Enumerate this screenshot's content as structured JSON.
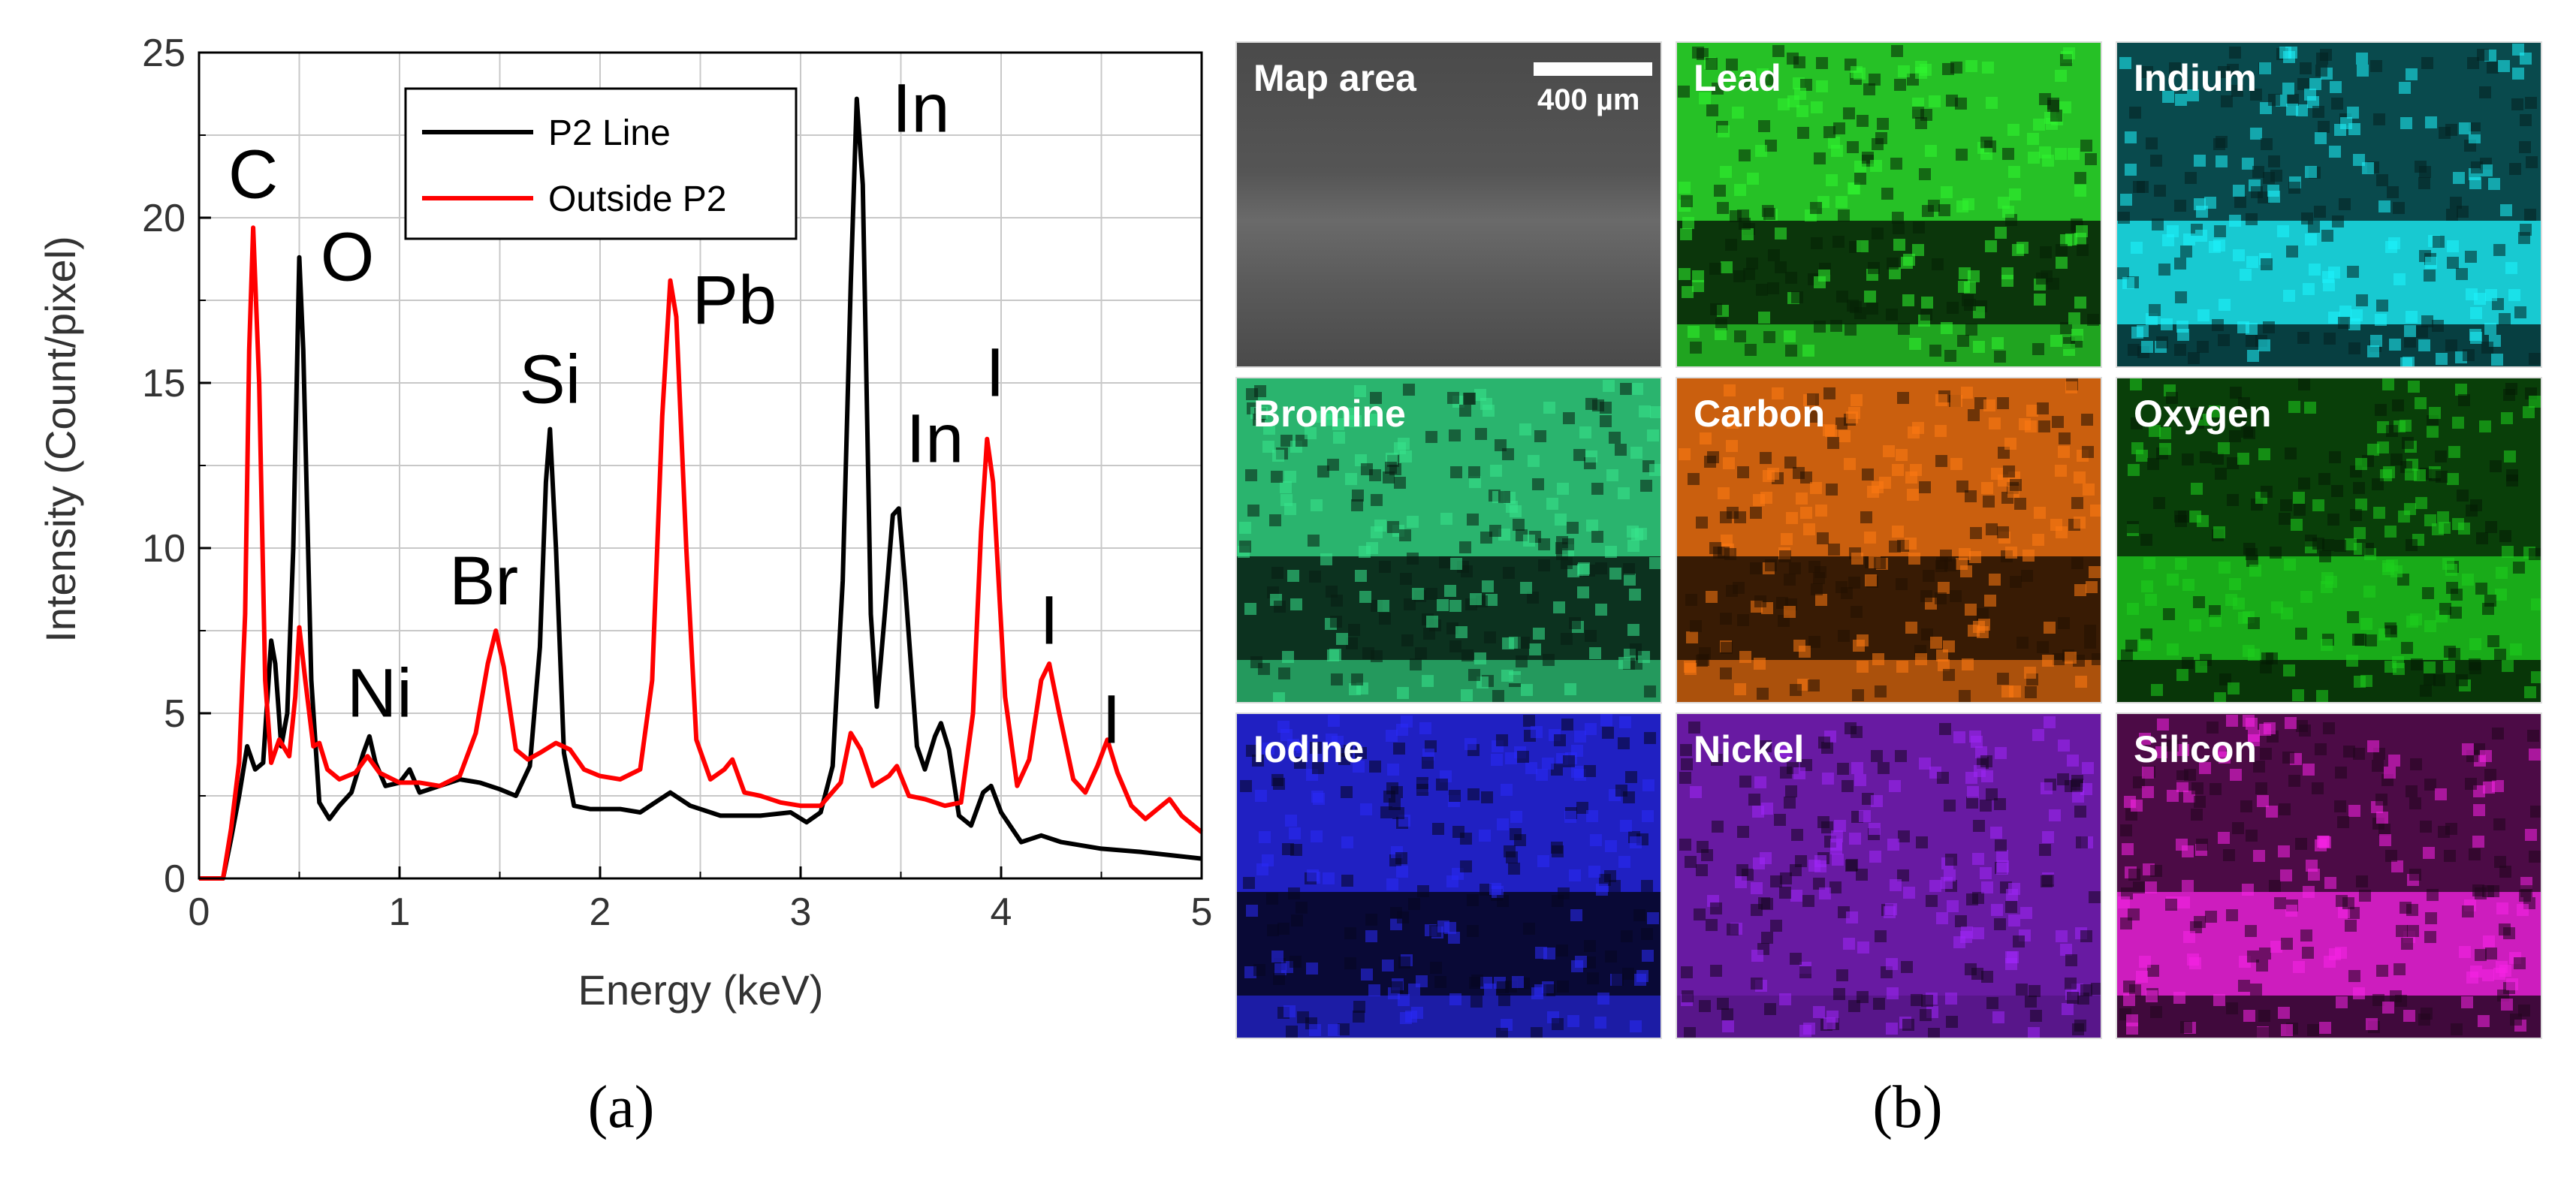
{
  "chart_data": {
    "type": "line",
    "xlabel": "Energy (keV)",
    "ylabel": "Intensity (Count/pixel)",
    "xlim": [
      0,
      5
    ],
    "ylim": [
      0,
      25
    ],
    "x_ticks": [
      "0",
      "1",
      "2",
      "3",
      "4",
      "5"
    ],
    "y_ticks": [
      "0",
      "5",
      "10",
      "15",
      "20",
      "25"
    ],
    "grid": true,
    "legend_position": "top-center",
    "series": [
      {
        "name": "P2 Line",
        "color": "#000000",
        "points": [
          [
            0,
            0
          ],
          [
            0.12,
            0
          ],
          [
            0.16,
            1.2
          ],
          [
            0.2,
            2.5
          ],
          [
            0.24,
            4
          ],
          [
            0.28,
            3.3
          ],
          [
            0.32,
            3.5
          ],
          [
            0.36,
            7.2
          ],
          [
            0.38,
            6.5
          ],
          [
            0.41,
            4
          ],
          [
            0.44,
            5
          ],
          [
            0.47,
            10
          ],
          [
            0.5,
            18.8
          ],
          [
            0.52,
            16
          ],
          [
            0.56,
            6
          ],
          [
            0.6,
            2.3
          ],
          [
            0.65,
            1.8
          ],
          [
            0.7,
            2.2
          ],
          [
            0.76,
            2.6
          ],
          [
            0.82,
            3.8
          ],
          [
            0.85,
            4.3
          ],
          [
            0.88,
            3.5
          ],
          [
            0.93,
            2.8
          ],
          [
            1.0,
            2.9
          ],
          [
            1.05,
            3.3
          ],
          [
            1.1,
            2.6
          ],
          [
            1.2,
            2.8
          ],
          [
            1.3,
            3.0
          ],
          [
            1.4,
            2.9
          ],
          [
            1.5,
            2.7
          ],
          [
            1.58,
            2.5
          ],
          [
            1.65,
            3.4
          ],
          [
            1.7,
            7
          ],
          [
            1.73,
            12
          ],
          [
            1.75,
            13.6
          ],
          [
            1.78,
            10
          ],
          [
            1.82,
            3.8
          ],
          [
            1.87,
            2.2
          ],
          [
            1.95,
            2.1
          ],
          [
            2.1,
            2.1
          ],
          [
            2.2,
            2.0
          ],
          [
            2.3,
            2.4
          ],
          [
            2.35,
            2.6
          ],
          [
            2.45,
            2.2
          ],
          [
            2.6,
            1.9
          ],
          [
            2.8,
            1.9
          ],
          [
            2.95,
            2.0
          ],
          [
            3.03,
            1.7
          ],
          [
            3.1,
            2.0
          ],
          [
            3.16,
            3.4
          ],
          [
            3.21,
            9
          ],
          [
            3.25,
            18
          ],
          [
            3.28,
            23.6
          ],
          [
            3.31,
            21
          ],
          [
            3.35,
            8
          ],
          [
            3.38,
            5.2
          ],
          [
            3.42,
            8
          ],
          [
            3.46,
            11
          ],
          [
            3.49,
            11.2
          ],
          [
            3.52,
            9
          ],
          [
            3.58,
            4
          ],
          [
            3.62,
            3.3
          ],
          [
            3.67,
            4.3
          ],
          [
            3.7,
            4.7
          ],
          [
            3.74,
            3.9
          ],
          [
            3.79,
            1.9
          ],
          [
            3.85,
            1.6
          ],
          [
            3.91,
            2.6
          ],
          [
            3.95,
            2.8
          ],
          [
            4.0,
            2.0
          ],
          [
            4.1,
            1.1
          ],
          [
            4.2,
            1.3
          ],
          [
            4.3,
            1.1
          ],
          [
            4.5,
            0.9
          ],
          [
            4.7,
            0.8
          ],
          [
            5.0,
            0.6
          ]
        ]
      },
      {
        "name": "Outside P2",
        "color": "#ff0000",
        "points": [
          [
            0,
            0
          ],
          [
            0.12,
            0
          ],
          [
            0.16,
            1.5
          ],
          [
            0.2,
            3.5
          ],
          [
            0.23,
            8
          ],
          [
            0.25,
            16
          ],
          [
            0.27,
            19.7
          ],
          [
            0.3,
            15
          ],
          [
            0.33,
            6
          ],
          [
            0.36,
            3.5
          ],
          [
            0.4,
            4.2
          ],
          [
            0.45,
            3.7
          ],
          [
            0.48,
            5.5
          ],
          [
            0.5,
            7.6
          ],
          [
            0.53,
            6
          ],
          [
            0.57,
            4
          ],
          [
            0.6,
            4.1
          ],
          [
            0.64,
            3.3
          ],
          [
            0.7,
            3
          ],
          [
            0.78,
            3.2
          ],
          [
            0.84,
            3.7
          ],
          [
            0.9,
            3.2
          ],
          [
            1.0,
            2.9
          ],
          [
            1.1,
            2.9
          ],
          [
            1.2,
            2.8
          ],
          [
            1.3,
            3.1
          ],
          [
            1.38,
            4.4
          ],
          [
            1.44,
            6.5
          ],
          [
            1.48,
            7.5
          ],
          [
            1.52,
            6.4
          ],
          [
            1.58,
            3.9
          ],
          [
            1.64,
            3.6
          ],
          [
            1.7,
            3.8
          ],
          [
            1.78,
            4.1
          ],
          [
            1.85,
            3.9
          ],
          [
            1.92,
            3.3
          ],
          [
            2.0,
            3.1
          ],
          [
            2.1,
            3.0
          ],
          [
            2.2,
            3.3
          ],
          [
            2.26,
            6
          ],
          [
            2.31,
            14
          ],
          [
            2.35,
            18.1
          ],
          [
            2.38,
            17
          ],
          [
            2.43,
            10
          ],
          [
            2.48,
            4.2
          ],
          [
            2.55,
            3.0
          ],
          [
            2.62,
            3.3
          ],
          [
            2.66,
            3.6
          ],
          [
            2.72,
            2.6
          ],
          [
            2.8,
            2.5
          ],
          [
            2.9,
            2.3
          ],
          [
            3.0,
            2.2
          ],
          [
            3.1,
            2.2
          ],
          [
            3.2,
            2.9
          ],
          [
            3.25,
            4.4
          ],
          [
            3.3,
            3.9
          ],
          [
            3.36,
            2.8
          ],
          [
            3.44,
            3.1
          ],
          [
            3.48,
            3.4
          ],
          [
            3.54,
            2.5
          ],
          [
            3.62,
            2.4
          ],
          [
            3.72,
            2.2
          ],
          [
            3.8,
            2.3
          ],
          [
            3.86,
            5
          ],
          [
            3.9,
            10.5
          ],
          [
            3.93,
            13.3
          ],
          [
            3.96,
            12
          ],
          [
            4.02,
            5.5
          ],
          [
            4.08,
            2.8
          ],
          [
            4.14,
            3.6
          ],
          [
            4.2,
            6
          ],
          [
            4.24,
            6.5
          ],
          [
            4.29,
            5
          ],
          [
            4.36,
            3.0
          ],
          [
            4.42,
            2.6
          ],
          [
            4.48,
            3.4
          ],
          [
            4.53,
            4.2
          ],
          [
            4.58,
            3.2
          ],
          [
            4.65,
            2.2
          ],
          [
            4.72,
            1.8
          ],
          [
            4.8,
            2.2
          ],
          [
            4.84,
            2.4
          ],
          [
            4.9,
            1.9
          ],
          [
            5.0,
            1.4
          ]
        ]
      }
    ],
    "annotations": [
      {
        "text": "C",
        "x": 0.27,
        "y": 20.6
      },
      {
        "text": "O",
        "x": 0.74,
        "y": 18.1
      },
      {
        "text": "Ni",
        "x": 0.9,
        "y": 4.9
      },
      {
        "text": "Br",
        "x": 1.42,
        "y": 8.3
      },
      {
        "text": "Si",
        "x": 1.75,
        "y": 14.4
      },
      {
        "text": "Pb",
        "x": 2.67,
        "y": 16.8
      },
      {
        "text": "In",
        "x": 3.6,
        "y": 22.6
      },
      {
        "text": "In",
        "x": 3.67,
        "y": 12.6
      },
      {
        "text": "I",
        "x": 3.97,
        "y": 14.6
      },
      {
        "text": "I",
        "x": 4.24,
        "y": 7.1
      },
      {
        "text": "I",
        "x": 4.55,
        "y": 4.1
      }
    ]
  },
  "panel_labels": {
    "a": "(a)",
    "b": "(b)"
  },
  "maps": {
    "scale_bar_label": "400 µm",
    "tiles": [
      {
        "label": "Map area",
        "color": "#7a7a7a",
        "band": "gray"
      },
      {
        "label": "Lead",
        "color": "#2ad62a",
        "band": "dark"
      },
      {
        "label": "Indium",
        "color": "#19d4dc",
        "band": "bright"
      },
      {
        "label": "Bromine",
        "color": "#2fc87a",
        "band": "dark"
      },
      {
        "label": "Carbon",
        "color": "#e06a10",
        "band": "dark"
      },
      {
        "label": "Oxygen",
        "color": "#1ab41a",
        "band": "bright"
      },
      {
        "label": "Iodine",
        "color": "#2424d8",
        "band": "dark"
      },
      {
        "label": "Nickel",
        "color": "#8a22d8",
        "band": "none"
      },
      {
        "label": "Silicon",
        "color": "#d81ec8",
        "band": "bright"
      }
    ]
  }
}
